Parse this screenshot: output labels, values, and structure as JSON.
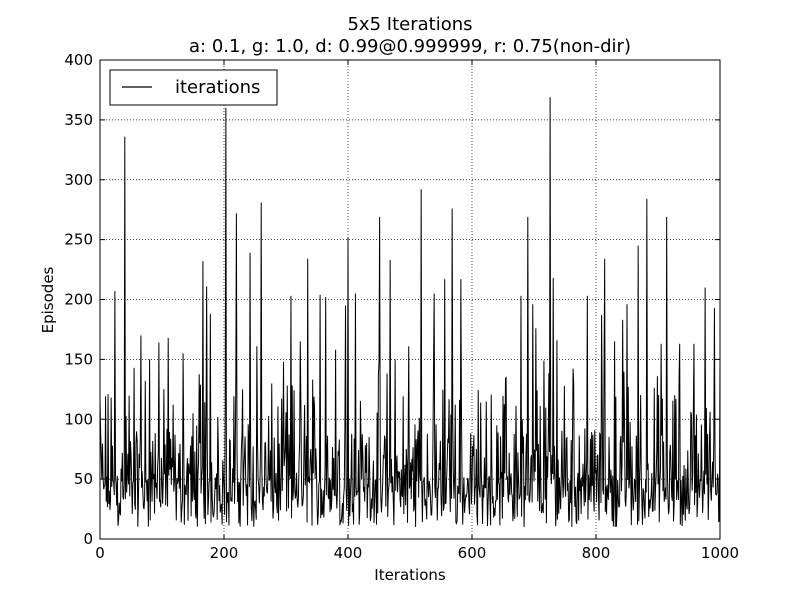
{
  "chart_data": {
    "type": "line",
    "title": "5x5 Iterations",
    "subtitle": "a: 0.1, g: 1.0, d: 0.99@0.999999, r: 0.75(non-dir)",
    "xlabel": "Iterations",
    "ylabel": "Episodes",
    "xlim": [
      0,
      1000
    ],
    "ylim": [
      0,
      400
    ],
    "xticks": [
      "0",
      "200",
      "400",
      "600",
      "800",
      "1000"
    ],
    "yticks": [
      "0",
      "50",
      "100",
      "150",
      "200",
      "250",
      "300",
      "350",
      "400"
    ],
    "grid": true,
    "legend": {
      "position": "top-left",
      "entries": [
        "iterations"
      ]
    },
    "line_color": "#000000",
    "series": [
      {
        "name": "iterations",
        "note": "1000-point noisy series; notable peaks (x, y) listed as sample values",
        "x": [
          0,
          20,
          24,
          40,
          55,
          66,
          80,
          95,
          110,
          117,
          134,
          150,
          166,
          172,
          178,
          190,
          203,
          220,
          230,
          242,
          253,
          260,
          275,
          295,
          308,
          323,
          335,
          355,
          364,
          380,
          396,
          400,
          412,
          422,
          451,
          468,
          476,
          498,
          518,
          539,
          556,
          568,
          582,
          600,
          620,
          640,
          660,
          679,
          690,
          698,
          703,
          716,
          726,
          731,
          737,
          749,
          764,
          786,
          809,
          814,
          830,
          843,
          850,
          868,
          882,
          905,
          914,
          935,
          958,
          976,
          991,
          1000
        ],
        "values": [
          115,
          78,
          207,
          336,
          143,
          170,
          150,
          164,
          168,
          60,
          155,
          105,
          232,
          211,
          188,
          102,
          360,
          272,
          125,
          239,
          161,
          281,
          74,
          82,
          203,
          165,
          234,
          204,
          202,
          158,
          195,
          252,
          205,
          50,
          269,
          233,
          150,
          161,
          292,
          205,
          217,
          276,
          217,
          42,
          68,
          95,
          72,
          203,
          269,
          196,
          176,
          149,
          369,
          218,
          166,
          128,
          130,
          203,
          187,
          234,
          165,
          183,
          196,
          245,
          284,
          163,
          269,
          163,
          163,
          210,
          193,
          150
        ]
      }
    ]
  }
}
